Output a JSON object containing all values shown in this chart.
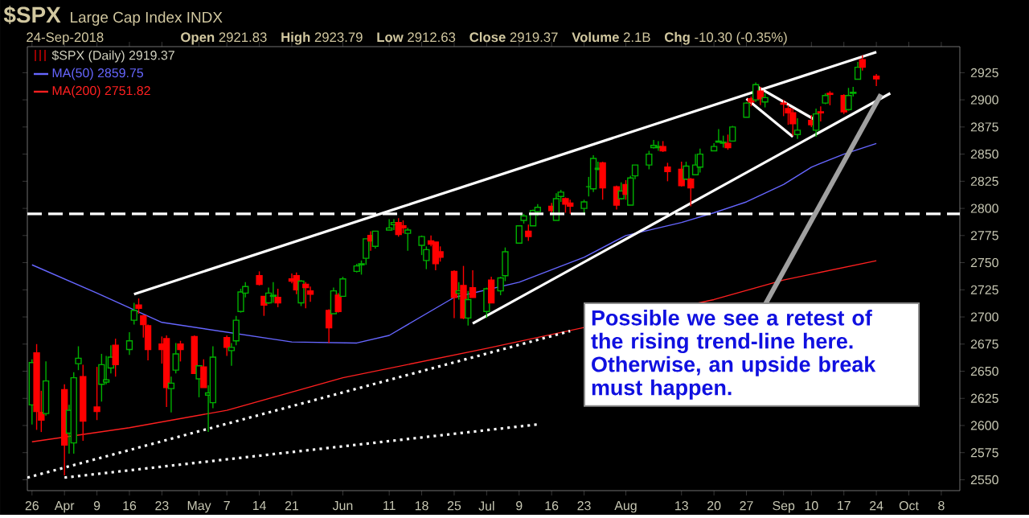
{
  "chart_data": {
    "type": "candlestick",
    "title": "$SPX",
    "subtitle": "Large Cap Index INDX",
    "annotations": [
      "24-Sep-2018",
      "**Open** 2921.83",
      "**High** 2923.79",
      "**Low** 2912.63",
      "**Close** 2919.37",
      "**Volume** 2.1B",
      "**Chg** -10.30 (-0.35%)",
      {
        "text": "Possible we see a retest of the rising trend-line here. Otherwise, an upside break must happen.",
        "x": "2018-09-25",
        "y": 2905
      }
    ],
    "legend": "top left",
    "xlim": [
      "2018-03-25",
      "2018-10-12"
    ],
    "xticks": [
      {
        "value": "2018-03-26",
        "label": "26"
      },
      {
        "value": "2018-04-02",
        "label": "Apr"
      },
      {
        "value": "2018-04-09",
        "label": "9"
      },
      {
        "value": "2018-04-16",
        "label": "16"
      },
      {
        "value": "2018-04-23",
        "label": "23"
      },
      {
        "value": "2018-05-01",
        "label": "May"
      },
      {
        "value": "2018-05-07",
        "label": "7"
      },
      {
        "value": "2018-05-14",
        "label": "14"
      },
      {
        "value": "2018-05-21",
        "label": "21"
      },
      {
        "value": "2018-06-01",
        "label": "Jun"
      },
      {
        "value": "2018-06-11",
        "label": "11"
      },
      {
        "value": "2018-06-18",
        "label": "18"
      },
      {
        "value": "2018-06-25",
        "label": "25"
      },
      {
        "value": "2018-07-02",
        "label": "Jul"
      },
      {
        "value": "2018-07-09",
        "label": "9"
      },
      {
        "value": "2018-07-16",
        "label": "16"
      },
      {
        "value": "2018-07-23",
        "label": "23"
      },
      {
        "value": "2018-08-01",
        "label": "Aug"
      },
      {
        "value": "2018-08-13",
        "label": "13"
      },
      {
        "value": "2018-08-20",
        "label": "20"
      },
      {
        "value": "2018-08-27",
        "label": "27"
      },
      {
        "value": "2018-09-04",
        "label": "Sep"
      },
      {
        "value": "2018-09-10",
        "label": "10"
      },
      {
        "value": "2018-09-17",
        "label": "17"
      },
      {
        "value": "2018-09-24",
        "label": "24"
      },
      {
        "value": "2018-10-01",
        "label": "Oct"
      },
      {
        "value": "2018-10-08",
        "label": "8"
      }
    ],
    "ylim": [
      2540,
      2949
    ],
    "yticks": [
      2550,
      2575,
      2600,
      2625,
      2650,
      2675,
      2700,
      2725,
      2750,
      2775,
      2800,
      2825,
      2850,
      2875,
      2900,
      2925
    ],
    "ref_lines": [
      {
        "axis": "y",
        "value": 2795,
        "color": "#ffffff",
        "line_style": "dashed"
      }
    ],
    "series": [
      {
        "type": "candlestick",
        "name": "$SPX (Daily) 2919.37",
        "x": [
          "2018-03-26",
          "2018-03-27",
          "2018-03-28",
          "2018-03-29",
          "2018-04-02",
          "2018-04-03",
          "2018-04-04",
          "2018-04-05",
          "2018-04-06",
          "2018-04-09",
          "2018-04-10",
          "2018-04-11",
          "2018-04-12",
          "2018-04-13",
          "2018-04-16",
          "2018-04-17",
          "2018-04-18",
          "2018-04-19",
          "2018-04-20",
          "2018-04-23",
          "2018-04-24",
          "2018-04-25",
          "2018-04-26",
          "2018-04-27",
          "2018-04-30",
          "2018-05-01",
          "2018-05-02",
          "2018-05-03",
          "2018-05-04",
          "2018-05-07",
          "2018-05-08",
          "2018-05-09",
          "2018-05-10",
          "2018-05-11",
          "2018-05-14",
          "2018-05-15",
          "2018-05-16",
          "2018-05-17",
          "2018-05-18",
          "2018-05-21",
          "2018-05-22",
          "2018-05-23",
          "2018-05-24",
          "2018-05-25",
          "2018-05-29",
          "2018-05-30",
          "2018-05-31",
          "2018-06-01",
          "2018-06-04",
          "2018-06-05",
          "2018-06-06",
          "2018-06-07",
          "2018-06-08",
          "2018-06-11",
          "2018-06-12",
          "2018-06-13",
          "2018-06-14",
          "2018-06-15",
          "2018-06-18",
          "2018-06-19",
          "2018-06-20",
          "2018-06-21",
          "2018-06-22",
          "2018-06-25",
          "2018-06-26",
          "2018-06-27",
          "2018-06-28",
          "2018-06-29",
          "2018-07-02",
          "2018-07-03",
          "2018-07-05",
          "2018-07-06",
          "2018-07-09",
          "2018-07-10",
          "2018-07-11",
          "2018-07-12",
          "2018-07-13",
          "2018-07-16",
          "2018-07-17",
          "2018-07-18",
          "2018-07-19",
          "2018-07-20",
          "2018-07-23",
          "2018-07-24",
          "2018-07-25",
          "2018-07-26",
          "2018-07-27",
          "2018-07-30",
          "2018-07-31",
          "2018-08-01",
          "2018-08-02",
          "2018-08-03",
          "2018-08-06",
          "2018-08-07",
          "2018-08-08",
          "2018-08-09",
          "2018-08-10",
          "2018-08-13",
          "2018-08-14",
          "2018-08-15",
          "2018-08-16",
          "2018-08-17",
          "2018-08-20",
          "2018-08-21",
          "2018-08-22",
          "2018-08-23",
          "2018-08-24",
          "2018-08-27",
          "2018-08-28",
          "2018-08-29",
          "2018-08-30",
          "2018-08-31",
          "2018-09-04",
          "2018-09-05",
          "2018-09-06",
          "2018-09-07",
          "2018-09-10",
          "2018-09-11",
          "2018-09-12",
          "2018-09-13",
          "2018-09-14",
          "2018-09-17",
          "2018-09-18",
          "2018-09-19",
          "2018-09-20",
          "2018-09-21",
          "2018-09-24"
        ],
        "ohlc": [
          [
            2619,
            2661,
            2601,
            2658
          ],
          [
            2667,
            2675,
            2596,
            2613
          ],
          [
            2612,
            2632,
            2594,
            2605
          ],
          [
            2611,
            2659,
            2609,
            2641
          ],
          [
            2633,
            2638,
            2554,
            2582
          ],
          [
            2593,
            2619,
            2574,
            2614
          ],
          [
            2584,
            2649,
            2574,
            2644
          ],
          [
            2657,
            2673,
            2651,
            2662
          ],
          [
            2645,
            2656,
            2586,
            2604
          ],
          [
            2617,
            2654,
            2605,
            2613
          ],
          [
            2638,
            2666,
            2622,
            2656
          ],
          [
            2640,
            2664,
            2638,
            2642
          ],
          [
            2653,
            2674,
            2648,
            2663
          ],
          [
            2674,
            2680,
            2645,
            2656
          ],
          [
            2670,
            2686,
            2665,
            2678
          ],
          [
            2697,
            2713,
            2693,
            2706
          ],
          [
            2711,
            2717,
            2703,
            2708
          ],
          [
            2701,
            2702,
            2681,
            2693
          ],
          [
            2692,
            2693,
            2660,
            2670
          ],
          [
            2675,
            2682,
            2657,
            2670
          ],
          [
            2680,
            2683,
            2617,
            2635
          ],
          [
            2634,
            2645,
            2612,
            2639
          ],
          [
            2651,
            2676,
            2648,
            2666
          ],
          [
            2675,
            2678,
            2659,
            2670
          ],
          [
            2682,
            2683,
            2648,
            2648
          ],
          [
            2643,
            2655,
            2626,
            2655
          ],
          [
            2654,
            2661,
            2635,
            2635
          ],
          [
            2628,
            2637,
            2594,
            2630
          ],
          [
            2621,
            2673,
            2616,
            2663
          ],
          [
            2681,
            2683,
            2664,
            2672
          ],
          [
            2669,
            2676,
            2655,
            2672
          ],
          [
            2678,
            2701,
            2674,
            2697
          ],
          [
            2705,
            2726,
            2704,
            2723
          ],
          [
            2722,
            2732,
            2718,
            2728
          ],
          [
            2738,
            2742,
            2729,
            2730
          ],
          [
            2719,
            2719,
            2701,
            2711
          ],
          [
            2713,
            2727,
            2712,
            2722
          ],
          [
            2719,
            2732,
            2713,
            2720
          ],
          [
            2718,
            2726,
            2709,
            2713
          ],
          [
            2735,
            2740,
            2731,
            2733
          ],
          [
            2738,
            2741,
            2721,
            2725
          ],
          [
            2713,
            2734,
            2710,
            2733
          ],
          [
            2730,
            2732,
            2708,
            2727
          ],
          [
            2724,
            2728,
            2714,
            2721
          ],
          [
            2706,
            2707,
            2676,
            2690
          ],
          [
            2703,
            2727,
            2703,
            2724
          ],
          [
            2720,
            2722,
            2704,
            2705
          ],
          [
            2719,
            2737,
            2719,
            2735
          ],
          [
            2742,
            2749,
            2741,
            2747
          ],
          [
            2748,
            2752,
            2739,
            2749
          ],
          [
            2754,
            2772,
            2748,
            2772
          ],
          [
            2775,
            2779,
            2761,
            2770
          ],
          [
            2765,
            2779,
            2763,
            2779
          ],
          [
            2780,
            2790,
            2780,
            2782
          ],
          [
            2785,
            2790,
            2780,
            2787
          ],
          [
            2787,
            2791,
            2774,
            2776
          ],
          [
            2784,
            2789,
            2777,
            2782
          ],
          [
            2777,
            2782,
            2761,
            2780
          ],
          [
            2766,
            2775,
            2757,
            2774
          ],
          [
            2752,
            2765,
            2744,
            2762
          ],
          [
            2770,
            2775,
            2765,
            2767
          ],
          [
            2769,
            2769,
            2743,
            2749
          ],
          [
            2760,
            2765,
            2751,
            2755
          ],
          [
            2742,
            2743,
            2699,
            2718
          ],
          [
            2722,
            2732,
            2716,
            2724
          ],
          [
            2729,
            2747,
            2698,
            2699
          ],
          [
            2699,
            2724,
            2692,
            2716
          ],
          [
            2727,
            2743,
            2718,
            2718
          ],
          [
            2705,
            2727,
            2699,
            2726
          ],
          [
            2734,
            2737,
            2713,
            2713
          ],
          [
            2724,
            2737,
            2720,
            2736
          ],
          [
            2738,
            2764,
            2733,
            2760
          ],
          [
            2768,
            2784,
            2768,
            2784
          ],
          [
            2789,
            2795,
            2786,
            2793
          ],
          [
            2779,
            2785,
            2770,
            2774
          ],
          [
            2784,
            2799,
            2784,
            2798
          ],
          [
            2797,
            2804,
            2793,
            2801
          ],
          [
            2802,
            2805,
            2794,
            2798
          ],
          [
            2789,
            2814,
            2789,
            2809
          ],
          [
            2811,
            2817,
            2806,
            2815
          ],
          [
            2809,
            2810,
            2796,
            2804
          ],
          [
            2805,
            2808,
            2795,
            2802
          ],
          [
            2800,
            2808,
            2795,
            2806
          ],
          [
            2820,
            2829,
            2811,
            2820
          ],
          [
            2818,
            2849,
            2815,
            2846
          ],
          [
            2836,
            2843,
            2835,
            2837
          ],
          [
            2842,
            2843,
            2808,
            2819
          ],
          [
            2820,
            2821,
            2799,
            2803
          ],
          [
            2809,
            2824,
            2808,
            2816
          ],
          [
            2822,
            2826,
            2808,
            2813
          ],
          [
            2803,
            2830,
            2803,
            2828
          ],
          [
            2830,
            2840,
            2827,
            2840
          ],
          [
            2840,
            2853,
            2836,
            2850
          ],
          [
            2856,
            2863,
            2855,
            2858
          ],
          [
            2856,
            2862,
            2853,
            2857
          ],
          [
            2857,
            2862,
            2852,
            2853
          ],
          [
            2838,
            2842,
            2825,
            2834
          ],
          [
            2836,
            2843,
            2820,
            2821
          ],
          [
            2827,
            2843,
            2826,
            2839
          ],
          [
            2827,
            2828,
            2802,
            2819
          ],
          [
            2831,
            2850,
            2831,
            2840
          ],
          [
            2838,
            2855,
            2833,
            2850
          ],
          [
            2853,
            2860,
            2853,
            2857
          ],
          [
            2861,
            2873,
            2861,
            2862
          ],
          [
            2860,
            2867,
            2856,
            2861
          ],
          [
            2860,
            2868,
            2854,
            2856
          ],
          [
            2862,
            2876,
            2862,
            2875
          ],
          [
            2884,
            2898,
            2884,
            2897
          ],
          [
            2901,
            2903,
            2894,
            2898
          ],
          [
            2900,
            2916,
            2898,
            2914
          ],
          [
            2908,
            2912,
            2895,
            2901
          ],
          [
            2898,
            2906,
            2893,
            2902
          ],
          [
            2897,
            2900,
            2885,
            2896
          ],
          [
            2892,
            2895,
            2877,
            2888
          ],
          [
            2888,
            2892,
            2867,
            2878
          ],
          [
            2868,
            2883,
            2864,
            2872
          ],
          [
            2881,
            2886,
            2875,
            2877
          ],
          [
            2872,
            2892,
            2866,
            2887
          ],
          [
            2889,
            2894,
            2880,
            2888
          ],
          [
            2897,
            2906,
            2896,
            2904
          ],
          [
            2906,
            2908,
            2895,
            2905
          ],
          [
            2904,
            2905,
            2887,
            2889
          ],
          [
            2891,
            2911,
            2890,
            2904
          ],
          [
            2906,
            2912,
            2903,
            2907
          ],
          [
            2919,
            2935,
            2919,
            2930
          ],
          [
            2937,
            2941,
            2927,
            2930
          ],
          [
            2921.83,
            2923.79,
            2912.63,
            2919.37
          ]
        ],
        "colors": [
          "#00b000",
          "#ff0000",
          "#ff0000",
          "#00b000",
          "#ff0000",
          "#00b000",
          "#00b000",
          "#00b000",
          "#ff0000",
          "#ff0000",
          "#00b000",
          "#00b000",
          "#00b000",
          "#ff0000",
          "#00b000",
          "#00b000",
          "#ff0000",
          "#ff0000",
          "#ff0000",
          "#ff0000",
          "#ff0000",
          "#00b000",
          "#00b000",
          "#ff0000",
          "#ff0000",
          "#00b000",
          "#ff0000",
          "#00b000",
          "#00b000",
          "#ff0000",
          "#00b000",
          "#00b000",
          "#00b000",
          "#00b000",
          "#ff0000",
          "#ff0000",
          "#00b000",
          "#00b000",
          "#ff0000",
          "#ff0000",
          "#ff0000",
          "#00b000",
          "#ff0000",
          "#ff0000",
          "#ff0000",
          "#00b000",
          "#ff0000",
          "#00b000",
          "#00b000",
          "#00b000",
          "#00b000",
          "#ff0000",
          "#00b000",
          "#00b000",
          "#00b000",
          "#ff0000",
          "#ff0000",
          "#00b000",
          "#00b000",
          "#00b000",
          "#ff0000",
          "#ff0000",
          "#ff0000",
          "#ff0000",
          "#00b000",
          "#ff0000",
          "#00b000",
          "#ff0000",
          "#00b000",
          "#ff0000",
          "#00b000",
          "#00b000",
          "#00b000",
          "#00b000",
          "#ff0000",
          "#00b000",
          "#00b000",
          "#ff0000",
          "#00b000",
          "#00b000",
          "#ff0000",
          "#ff0000",
          "#00b000",
          "#00b000",
          "#00b000",
          "#00b000",
          "#ff0000",
          "#ff0000",
          "#00b000",
          "#ff0000",
          "#00b000",
          "#00b000",
          "#00b000",
          "#00b000",
          "#00b000",
          "#ff0000",
          "#ff0000",
          "#ff0000",
          "#00b000",
          "#ff0000",
          "#00b000",
          "#00b000",
          "#00b000",
          "#00b000",
          "#00b000",
          "#ff0000",
          "#00b000",
          "#00b000",
          "#ff0000",
          "#00b000",
          "#ff0000",
          "#00b000",
          "#ff0000",
          "#ff0000",
          "#ff0000",
          "#00b000",
          "#ff0000",
          "#00b000",
          "#ff0000",
          "#00b000",
          "#ff0000",
          "#ff0000",
          "#00b000",
          "#00b000",
          "#00b000",
          "#ff0000",
          "#ff0000"
        ]
      },
      {
        "type": "line",
        "name": "MA(50) 2859.75",
        "color": "#6666ff",
        "x": [
          "2018-03-26",
          "2018-04-09",
          "2018-04-23",
          "2018-05-07",
          "2018-05-21",
          "2018-06-04",
          "2018-06-11",
          "2018-06-25",
          "2018-07-09",
          "2018-07-23",
          "2018-08-01",
          "2018-08-13",
          "2018-08-20",
          "2018-08-27",
          "2018-09-04",
          "2018-09-10",
          "2018-09-17",
          "2018-09-24"
        ],
        "values": [
          2748,
          2722,
          2695,
          2686,
          2677,
          2676,
          2683,
          2718,
          2732,
          2755,
          2775,
          2787,
          2796,
          2806,
          2822,
          2838,
          2850,
          2859.75
        ]
      },
      {
        "type": "line",
        "name": "MA(200) 2751.82",
        "color": "#ff2020",
        "x": [
          "2018-03-26",
          "2018-04-16",
          "2018-05-07",
          "2018-06-01",
          "2018-07-02",
          "2018-08-01",
          "2018-08-20",
          "2018-09-04",
          "2018-09-24"
        ],
        "values": [
          2585,
          2598,
          2614,
          2644,
          2671,
          null,
          2716,
          2734,
          2751.82
        ]
      },
      {
        "type": "line",
        "color": "#ffffff",
        "line_style": "solid",
        "x": [
          "2018-04-17",
          "2018-09-24"
        ],
        "values": [
          2721,
          2944
        ]
      },
      {
        "type": "line",
        "color": "#ffffff",
        "line_style": "solid",
        "x": [
          "2018-06-29",
          "2018-09-27"
        ],
        "values": [
          2694,
          2906
        ]
      },
      {
        "type": "line",
        "color": "#ffffff",
        "line_style": "solid",
        "x": [
          "2018-08-27",
          "2018-09-06"
        ],
        "values": [
          2901,
          2866
        ]
      },
      {
        "type": "line",
        "color": "#ffffff",
        "line_style": "solid",
        "x": [
          "2018-08-29",
          "2018-09-11"
        ],
        "values": [
          2913,
          2881
        ]
      },
      {
        "type": "line",
        "color": "#ffffff",
        "line_style": "dotted",
        "x": [
          "2018-03-25",
          "2018-07-20"
        ],
        "values": [
          2552,
          2687
        ]
      },
      {
        "type": "line",
        "color": "#ffffff",
        "line_style": "dotted",
        "x": [
          "2018-04-02",
          "2018-07-13"
        ],
        "values": [
          2552,
          2601
        ]
      }
    ]
  }
}
